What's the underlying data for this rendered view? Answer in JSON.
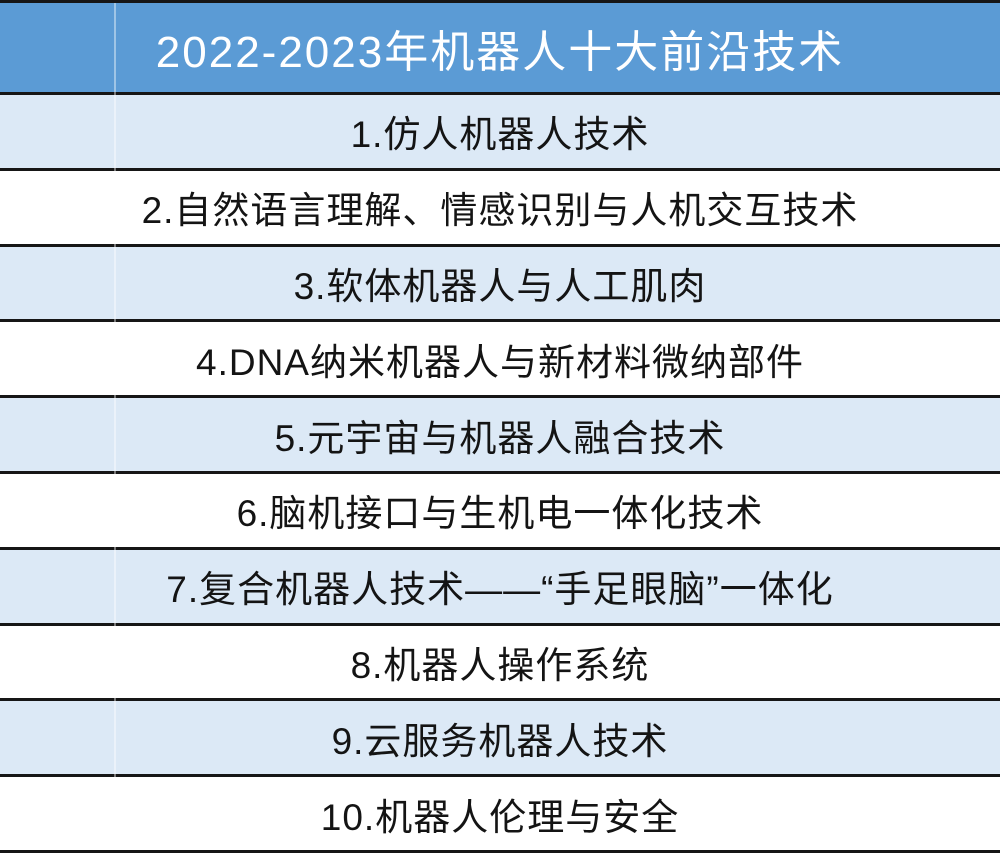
{
  "table": {
    "title": "2022-2023年机器人十大前沿技术",
    "rows": [
      {
        "label": "1.仿人机器人技术"
      },
      {
        "label": "2.自然语言理解、情感识别与人机交互技术"
      },
      {
        "label": "3.软体机器人与人工肌肉"
      },
      {
        "label": "4.DNA纳米机器人与新材料微纳部件"
      },
      {
        "label": "5.元宇宙与机器人融合技术"
      },
      {
        "label": "6.脑机接口与生机电一体化技术"
      },
      {
        "label": "7.复合机器人技术——“手足眼脑”一体化"
      },
      {
        "label": "8.机器人操作系统"
      },
      {
        "label": "9.云服务机器人技术"
      },
      {
        "label": "10.机器人伦理与安全"
      }
    ]
  },
  "colors": {
    "header_bg": "#5B9BD5",
    "header_text": "#FFFFFF",
    "row_alt_bg": "#DCE9F6",
    "row_bg": "#FFFFFF",
    "row_text": "#141414",
    "border": "#161616"
  },
  "chart_data": {
    "type": "table",
    "title": "2022-2023年机器人十大前沿技术",
    "rows": [
      [
        "1",
        "仿人机器人技术"
      ],
      [
        "2",
        "自然语言理解、情感识别与人机交互技术"
      ],
      [
        "3",
        "软体机器人与人工肌肉"
      ],
      [
        "4",
        "DNA纳米机器人与新材料微纳部件"
      ],
      [
        "5",
        "元宇宙与机器人融合技术"
      ],
      [
        "6",
        "脑机接口与生机电一体化技术"
      ],
      [
        "7",
        "复合机器人技术——“手足眼脑”一体化"
      ],
      [
        "8",
        "机器人操作系统"
      ],
      [
        "9",
        "云服务机器人技术"
      ],
      [
        "10",
        "机器人伦理与安全"
      ]
    ],
    "layout": "single-column list table, title band on top, alternating light-blue/white rows, thick dark horizontal rules"
  }
}
